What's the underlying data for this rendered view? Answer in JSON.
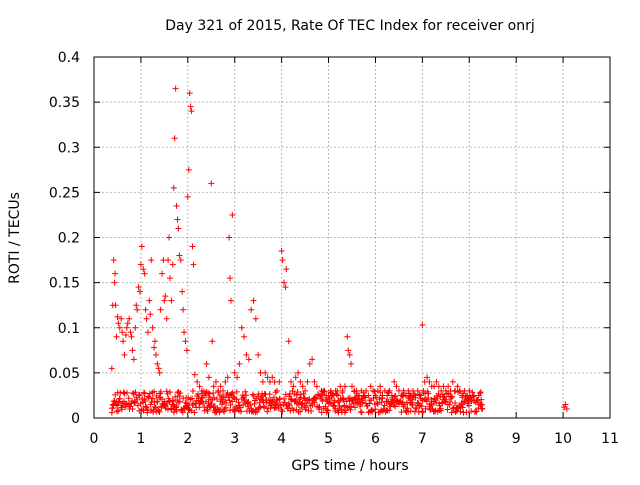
{
  "chart_data": {
    "type": "scatter",
    "title": "Day 321 of 2015, Rate Of TEC Index for receiver onrj",
    "xlabel": "GPS time / hours",
    "ylabel": "ROTI / TECUs",
    "xlim": [
      0,
      11
    ],
    "ylim": [
      0,
      0.4
    ],
    "xticks": [
      0,
      1,
      2,
      3,
      4,
      5,
      6,
      7,
      8,
      9,
      10,
      11
    ],
    "xtick_labels": [
      "0",
      "1",
      "2",
      "3",
      "4",
      "5",
      "6",
      "7",
      "8",
      "9",
      "10",
      "11"
    ],
    "yticks": [
      0,
      0.05,
      0.1,
      0.15,
      0.2,
      0.25,
      0.3,
      0.35,
      0.4
    ],
    "ytick_labels": [
      "0",
      "0.05",
      "0.1",
      "0.15",
      "0.2",
      "0.25",
      "0.3",
      "0.35",
      "0.4"
    ],
    "grid": true,
    "marker": "plus",
    "color": "#ff0000",
    "series": [
      {
        "name": "ROTI",
        "x": [
          0.38,
          0.4,
          0.42,
          0.44,
          0.45,
          0.46,
          0.48,
          0.5,
          0.52,
          0.55,
          0.58,
          0.6,
          0.62,
          0.65,
          0.68,
          0.7,
          0.72,
          0.75,
          0.78,
          0.8,
          0.82,
          0.85,
          0.88,
          0.9,
          0.92,
          0.95,
          0.98,
          1.0,
          1.02,
          1.05,
          1.08,
          1.1,
          1.12,
          1.15,
          1.18,
          1.2,
          1.22,
          1.25,
          1.28,
          1.3,
          1.32,
          1.35,
          1.38,
          1.4,
          1.42,
          1.45,
          1.48,
          1.5,
          1.52,
          1.55,
          1.58,
          1.6,
          1.62,
          1.65,
          1.68,
          1.7,
          1.72,
          1.74,
          1.76,
          1.78,
          1.8,
          1.82,
          1.85,
          1.88,
          1.9,
          1.92,
          1.95,
          1.98,
          2.0,
          2.02,
          2.04,
          2.06,
          2.08,
          2.1,
          2.12,
          2.15,
          2.2,
          2.25,
          2.3,
          2.35,
          2.4,
          2.45,
          2.5,
          2.52,
          2.55,
          2.6,
          2.65,
          2.7,
          2.75,
          2.8,
          2.85,
          2.88,
          2.9,
          2.92,
          2.95,
          3.0,
          3.05,
          3.1,
          3.15,
          3.2,
          3.25,
          3.3,
          3.35,
          3.4,
          3.45,
          3.5,
          3.55,
          3.6,
          3.65,
          3.7,
          3.75,
          3.8,
          3.85,
          3.9,
          3.95,
          4.0,
          4.02,
          4.05,
          4.08,
          4.1,
          4.15,
          4.2,
          4.25,
          4.3,
          4.35,
          4.4,
          4.45,
          4.5,
          4.55,
          4.6,
          4.65,
          4.7,
          4.75,
          4.8,
          4.85,
          4.9,
          4.95,
          5.0,
          5.05,
          5.1,
          5.15,
          5.2,
          5.25,
          5.3,
          5.35,
          5.4,
          5.42,
          5.45,
          5.48,
          5.5,
          5.55,
          5.6,
          5.65,
          5.7,
          5.75,
          5.8,
          5.85,
          5.9,
          5.95,
          6.0,
          6.05,
          6.1,
          6.15,
          6.2,
          6.25,
          6.3,
          6.35,
          6.4,
          6.45,
          6.5,
          6.55,
          6.6,
          6.65,
          6.7,
          6.75,
          6.8,
          6.85,
          6.9,
          6.95,
          7.0,
          7.02,
          7.05,
          7.1,
          7.15,
          7.2,
          7.25,
          7.3,
          7.35,
          7.4,
          7.45,
          7.5,
          7.55,
          7.6,
          7.65,
          7.7,
          7.75,
          7.8,
          7.85,
          7.9,
          7.95,
          8.0,
          8.05,
          8.1,
          8.15,
          8.2,
          8.25,
          8.28,
          10.02,
          10.05,
          10.08
        ],
        "y": [
          0.055,
          0.125,
          0.175,
          0.15,
          0.16,
          0.125,
          0.09,
          0.112,
          0.105,
          0.1,
          0.11,
          0.095,
          0.085,
          0.07,
          0.092,
          0.1,
          0.105,
          0.11,
          0.095,
          0.09,
          0.075,
          0.065,
          0.1,
          0.125,
          0.12,
          0.145,
          0.14,
          0.17,
          0.19,
          0.165,
          0.16,
          0.12,
          0.11,
          0.095,
          0.13,
          0.115,
          0.175,
          0.1,
          0.078,
          0.085,
          0.07,
          0.06,
          0.055,
          0.05,
          0.12,
          0.16,
          0.175,
          0.13,
          0.135,
          0.11,
          0.175,
          0.2,
          0.155,
          0.13,
          0.17,
          0.255,
          0.31,
          0.365,
          0.235,
          0.22,
          0.21,
          0.18,
          0.175,
          0.14,
          0.12,
          0.095,
          0.085,
          0.075,
          0.245,
          0.275,
          0.36,
          0.345,
          0.34,
          0.19,
          0.17,
          0.048,
          0.04,
          0.035,
          0.03,
          0.025,
          0.06,
          0.045,
          0.26,
          0.085,
          0.035,
          0.04,
          0.03,
          0.035,
          0.03,
          0.04,
          0.045,
          0.2,
          0.155,
          0.13,
          0.225,
          0.05,
          0.045,
          0.06,
          0.1,
          0.09,
          0.07,
          0.065,
          0.12,
          0.13,
          0.11,
          0.07,
          0.05,
          0.04,
          0.05,
          0.045,
          0.04,
          0.045,
          0.04,
          0.03,
          0.04,
          0.185,
          0.175,
          0.15,
          0.145,
          0.165,
          0.085,
          0.04,
          0.035,
          0.045,
          0.05,
          0.04,
          0.035,
          0.03,
          0.04,
          0.06,
          0.065,
          0.04,
          0.035,
          0.025,
          0.03,
          0.03,
          0.025,
          0.025,
          0.03,
          0.025,
          0.03,
          0.025,
          0.035,
          0.03,
          0.035,
          0.09,
          0.075,
          0.07,
          0.06,
          0.035,
          0.03,
          0.03,
          0.025,
          0.03,
          0.025,
          0.03,
          0.025,
          0.035,
          0.03,
          0.025,
          0.03,
          0.035,
          0.025,
          0.03,
          0.025,
          0.03,
          0.025,
          0.04,
          0.035,
          0.03,
          0.025,
          0.03,
          0.025,
          0.03,
          0.025,
          0.03,
          0.025,
          0.03,
          0.025,
          0.103,
          0.03,
          0.04,
          0.045,
          0.04,
          0.035,
          0.035,
          0.04,
          0.035,
          0.03,
          0.035,
          0.03,
          0.035,
          0.03,
          0.04,
          0.03,
          0.035,
          0.03,
          0.025,
          0.03,
          0.025,
          0.03,
          0.02,
          0.025,
          0.02,
          0.025,
          0.015,
          0.01,
          0.012,
          0.015,
          0.01
        ]
      }
    ],
    "baseline_band": {
      "x_start": 0.38,
      "x_end": 8.28,
      "y_low": 0.006,
      "y_high": 0.03,
      "note": "dense band of markers along the bottom of the plot"
    }
  }
}
